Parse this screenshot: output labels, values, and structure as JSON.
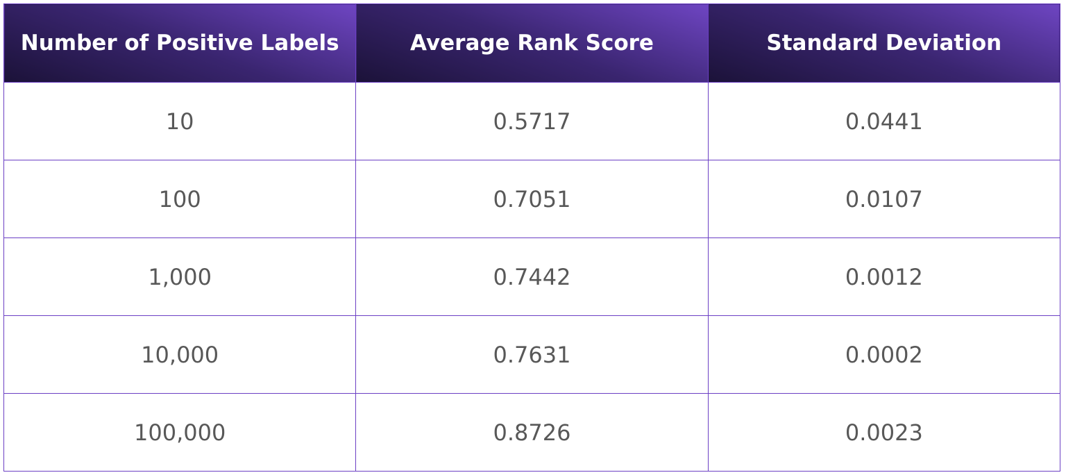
{
  "table": {
    "header": [
      "Number of Positive Labels",
      "Average Rank Score",
      "Standard Deviation"
    ],
    "rows": [
      [
        "10",
        "0.5717",
        "0.0441"
      ],
      [
        "100",
        "0.7051",
        "0.0107"
      ],
      [
        "1,000",
        "0.7442",
        "0.0012"
      ],
      [
        "10,000",
        "0.7631",
        "0.0002"
      ],
      [
        "100,000",
        "0.8726",
        "0.0023"
      ]
    ]
  }
}
